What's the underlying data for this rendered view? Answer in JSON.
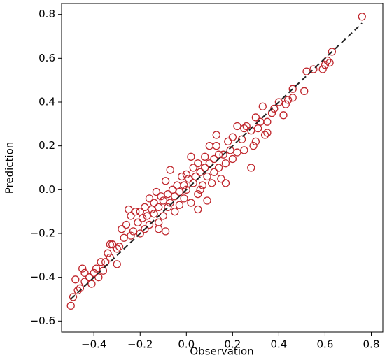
{
  "chart_data": {
    "type": "scatter",
    "x_label": "Observation",
    "y_label": "Prediction",
    "xlim": [
      -0.54,
      0.85
    ],
    "ylim": [
      -0.65,
      0.85
    ],
    "xticks": [
      {
        "value": -0.4,
        "label": "−0.4"
      },
      {
        "value": -0.2,
        "label": "−0.2"
      },
      {
        "value": 0.0,
        "label": "0.0"
      },
      0.2,
      0.4,
      0.6,
      0.8
    ],
    "yticks": [
      {
        "value": -0.6,
        "label": "−0.6"
      },
      {
        "value": -0.4,
        "label": "−0.4"
      },
      {
        "value": -0.2,
        "label": "−0.2"
      },
      {
        "value": 0.0,
        "label": "0.0"
      },
      0.2,
      0.4,
      0.6,
      0.8
    ],
    "grid": false,
    "reference_line": {
      "x": [
        -0.5,
        0.76
      ],
      "y": [
        -0.5,
        0.76
      ],
      "color": "#222222"
    },
    "x": [
      0.76,
      0.63,
      0.61,
      0.6,
      0.59,
      0.62,
      0.55,
      0.52,
      0.51,
      0.46,
      0.46,
      0.44,
      0.42,
      0.43,
      0.4,
      0.38,
      0.37,
      0.34,
      0.35,
      0.33,
      0.32,
      0.31,
      0.3,
      0.3,
      0.29,
      0.28,
      0.26,
      0.25,
      0.24,
      0.22,
      0.22,
      0.2,
      0.2,
      0.19,
      0.18,
      0.17,
      0.16,
      0.15,
      0.14,
      0.13,
      0.13,
      0.12,
      0.12,
      0.11,
      0.1,
      0.1,
      0.09,
      0.08,
      0.08,
      0.07,
      0.06,
      0.06,
      0.05,
      0.05,
      0.04,
      0.03,
      0.03,
      0.02,
      0.01,
      0.0,
      0.0,
      -0.01,
      -0.01,
      -0.02,
      -0.03,
      -0.03,
      -0.04,
      -0.05,
      -0.05,
      -0.06,
      -0.07,
      -0.08,
      -0.08,
      -0.09,
      -0.1,
      -0.1,
      -0.11,
      -0.12,
      -0.12,
      -0.13,
      -0.14,
      -0.14,
      -0.15,
      -0.16,
      -0.16,
      -0.17,
      -0.18,
      -0.18,
      -0.19,
      -0.2,
      -0.2,
      -0.21,
      -0.22,
      -0.23,
      -0.24,
      -0.25,
      -0.26,
      -0.27,
      -0.28,
      -0.29,
      -0.3,
      -0.32,
      -0.33,
      -0.34,
      -0.35,
      -0.36,
      -0.37,
      -0.38,
      -0.39,
      -0.4,
      -0.41,
      -0.42,
      -0.44,
      -0.45,
      -0.46,
      -0.47,
      -0.48,
      -0.49,
      -0.5,
      -0.44,
      -0.3,
      -0.33,
      0.02,
      -0.07,
      -0.12,
      0.09,
      0.25,
      0.35,
      0.28,
      -0.09,
      0.05,
      0.17,
      -0.24,
      0.14
    ],
    "series": [
      {
        "color": "#c0272d",
        "values": [
          0.79,
          0.63,
          0.59,
          0.57,
          0.55,
          0.58,
          0.55,
          0.54,
          0.45,
          0.46,
          0.42,
          0.41,
          0.34,
          0.39,
          0.4,
          0.37,
          0.35,
          0.25,
          0.26,
          0.38,
          0.31,
          0.28,
          0.33,
          0.22,
          0.2,
          0.27,
          0.29,
          0.28,
          0.23,
          0.17,
          0.29,
          0.24,
          0.14,
          0.18,
          0.22,
          0.12,
          0.16,
          0.05,
          0.1,
          0.25,
          0.2,
          0.08,
          0.14,
          0.03,
          0.12,
          0.2,
          0.06,
          0.1,
          0.15,
          0.02,
          0.08,
          0.0,
          0.12,
          -0.02,
          0.06,
          0.03,
          0.1,
          -0.06,
          0.05,
          0.0,
          0.07,
          0.02,
          -0.04,
          0.06,
          -0.01,
          -0.07,
          0.02,
          -0.03,
          -0.1,
          0.0,
          -0.06,
          -0.02,
          -0.08,
          0.04,
          -0.05,
          -0.12,
          -0.03,
          -0.08,
          -0.15,
          -0.01,
          -0.06,
          -0.11,
          -0.09,
          -0.16,
          -0.04,
          -0.12,
          -0.08,
          -0.18,
          -0.13,
          -0.1,
          -0.2,
          -0.15,
          -0.1,
          -0.19,
          -0.12,
          -0.09,
          -0.16,
          -0.22,
          -0.18,
          -0.26,
          -0.27,
          -0.25,
          -0.31,
          -0.29,
          -0.33,
          -0.37,
          -0.33,
          -0.4,
          -0.36,
          -0.38,
          -0.43,
          -0.4,
          -0.42,
          -0.36,
          -0.45,
          -0.46,
          -0.41,
          -0.49,
          -0.53,
          -0.38,
          -0.34,
          -0.25,
          0.15,
          0.09,
          -0.18,
          -0.05,
          0.18,
          0.31,
          0.1,
          -0.19,
          -0.09,
          0.03,
          -0.21,
          0.16
        ]
      }
    ]
  }
}
